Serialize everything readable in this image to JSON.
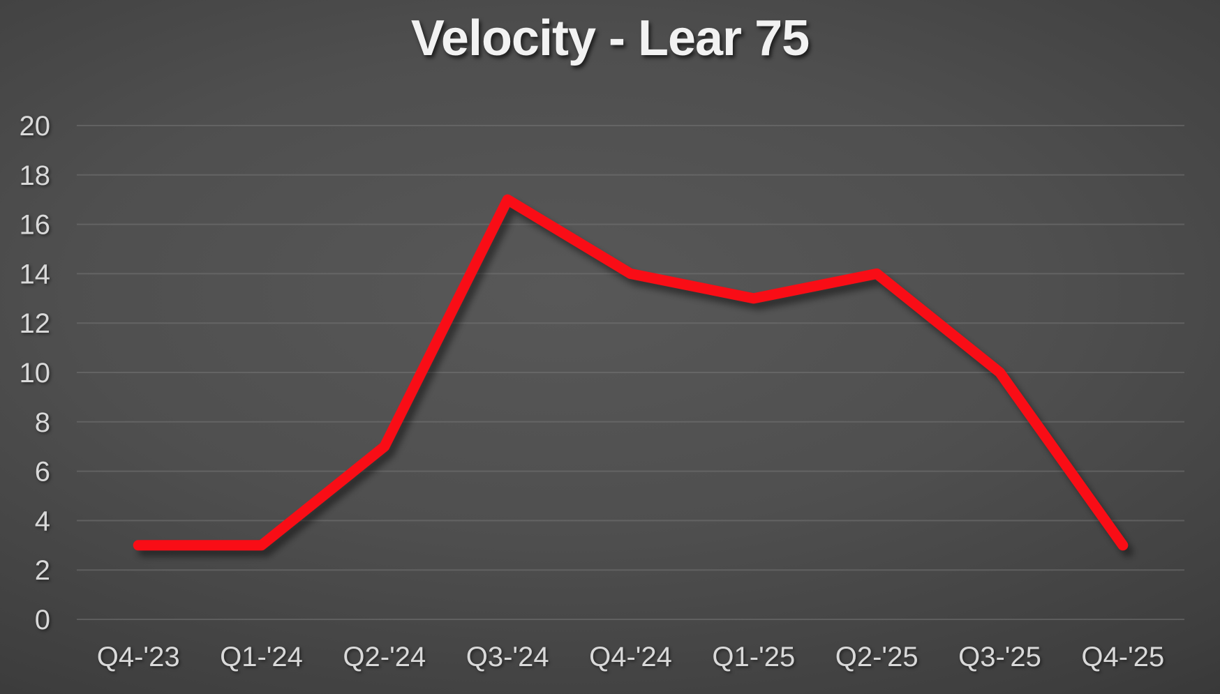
{
  "chart_data": {
    "type": "line",
    "title": "Velocity - Lear 75",
    "categories": [
      "Q4-'23",
      "Q1-'24",
      "Q2-'24",
      "Q3-'24",
      "Q4-'24",
      "Q1-'25",
      "Q2-'25",
      "Q3-'25",
      "Q4-'25"
    ],
    "values": [
      3,
      3,
      7,
      17,
      14,
      13,
      14,
      10,
      3
    ],
    "xlabel": "",
    "ylabel": "",
    "ylim": [
      0,
      20
    ],
    "yticks": [
      0,
      2,
      4,
      6,
      8,
      10,
      12,
      14,
      16,
      18,
      20
    ],
    "grid": "horizontal",
    "legend": "none"
  },
  "colors": {
    "line": "#f90d12",
    "title_text": "#f2f2f2",
    "tick_text": "#d9d9d9",
    "gridline": "#787878",
    "background_center": "#585858",
    "background_edge": "#1b1b1b"
  }
}
